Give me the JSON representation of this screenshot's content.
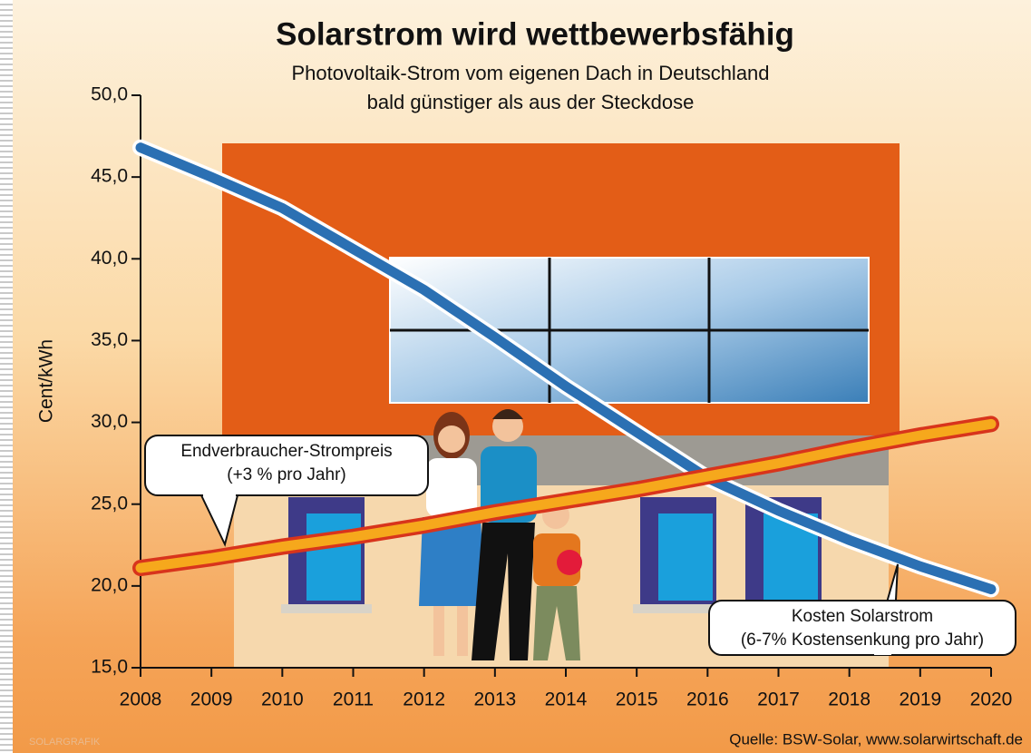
{
  "chart_data": {
    "type": "line",
    "title": "Solarstrom wird wettbewerbsfähig",
    "subtitle": [
      "Photovoltaik-Strom vom eigenen Dach in Deutschland",
      "bald günstiger als aus der Steckdose"
    ],
    "y_label": "Cent/kWh",
    "x": [
      2008,
      2009,
      2010,
      2011,
      2012,
      2013,
      2014,
      2015,
      2016,
      2017,
      2018,
      2019,
      2020
    ],
    "xlim": [
      2008,
      2020
    ],
    "xticks": [
      2008,
      2009,
      2010,
      2011,
      2012,
      2013,
      2014,
      2015,
      2016,
      2017,
      2018,
      2019,
      2020
    ],
    "ylim": [
      15,
      50
    ],
    "yticks": [
      {
        "value": 15,
        "label": "15,0"
      },
      {
        "value": 20,
        "label": "20,0"
      },
      {
        "value": 25,
        "label": "25,0"
      },
      {
        "value": 30,
        "label": "30,0"
      },
      {
        "value": 35,
        "label": "35,0"
      },
      {
        "value": 40,
        "label": "40,0"
      },
      {
        "value": 45,
        "label": "45,0"
      },
      {
        "value": 50,
        "label": "50,0"
      }
    ],
    "series": [
      {
        "name": "Kosten Solarstrom",
        "note": "(6-7% Kostensenkung pro Jahr)",
        "color": "#2b70b3",
        "values": [
          46.8,
          45.0,
          43.1,
          40.6,
          38.1,
          35.2,
          32.2,
          29.4,
          26.6,
          24.6,
          22.8,
          21.2,
          19.8
        ]
      },
      {
        "name": "Endverbraucher-Strompreis",
        "note": "(+3 % pro Jahr)",
        "color": "#f6a81c",
        "values": [
          21.1,
          21.7,
          22.4,
          23.0,
          23.7,
          24.5,
          25.2,
          25.9,
          26.7,
          27.5,
          28.4,
          29.2,
          29.9
        ]
      }
    ],
    "source": "Quelle: BSW-Solar, www.solarwirtschaft.de",
    "credit": "SOLARGRAFIK"
  }
}
